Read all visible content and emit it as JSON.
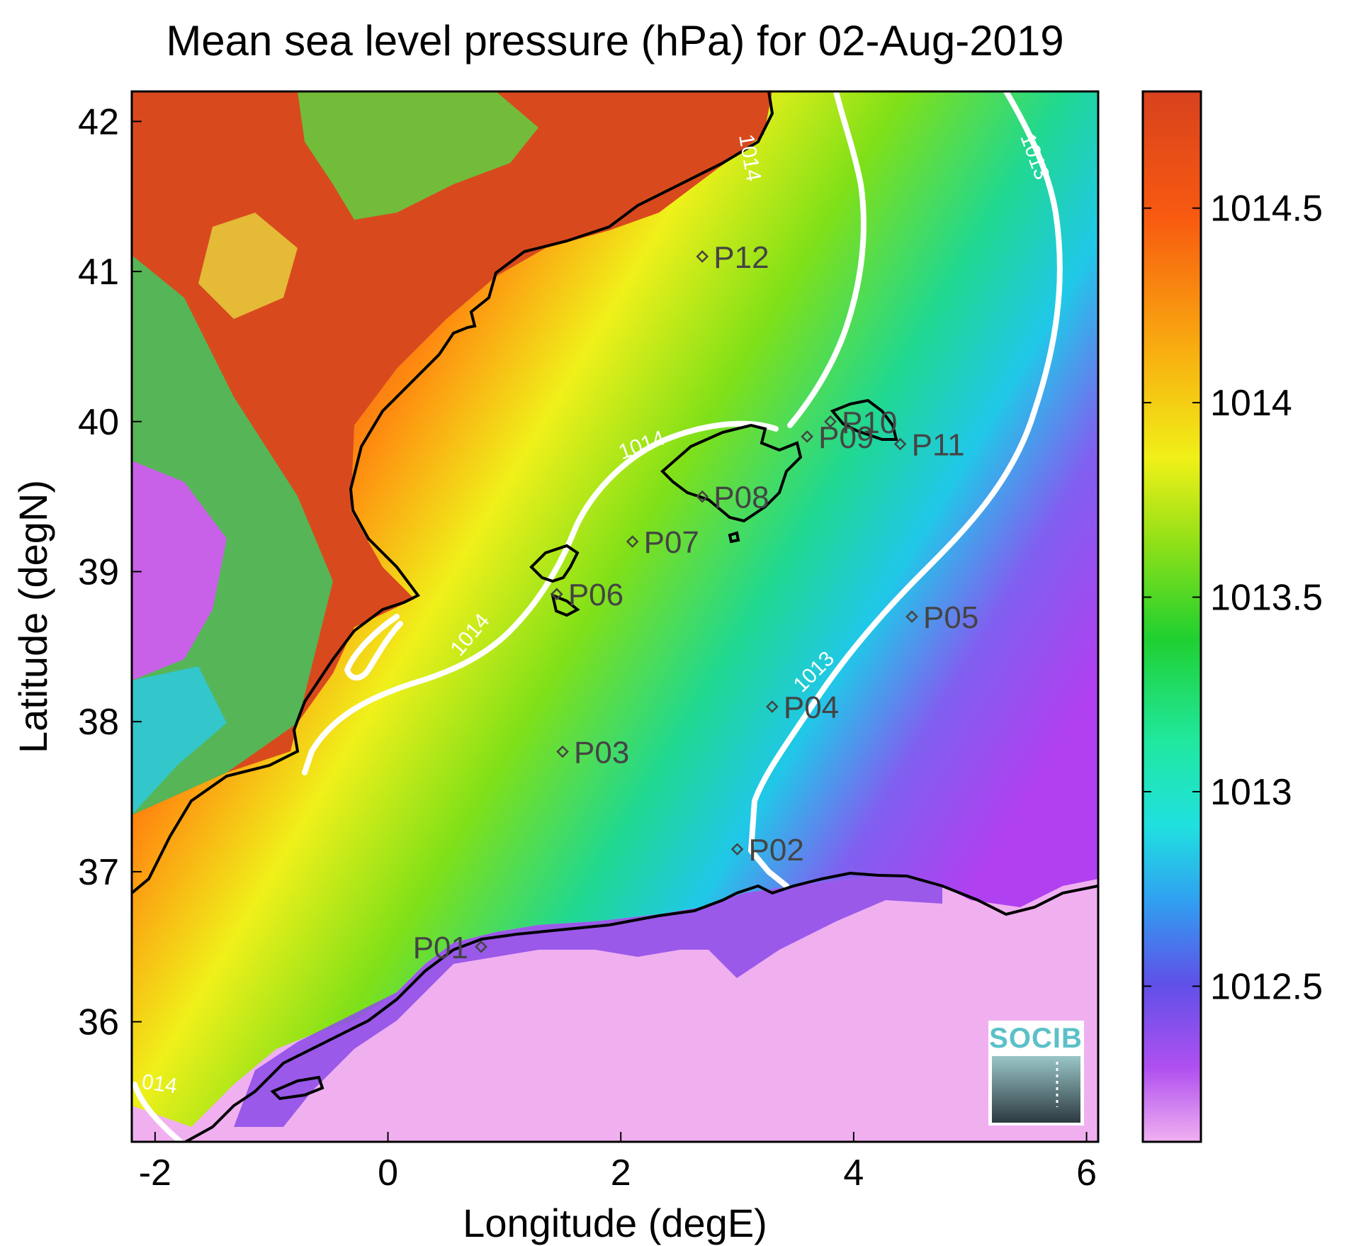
{
  "title": "Mean sea level pressure (hPa) for 02-Aug-2019",
  "xlabel": "Longitude (degE)",
  "ylabel": "Latitude (degN)",
  "x_ticks": [
    "-2",
    "0",
    "2",
    "4",
    "6"
  ],
  "y_ticks": [
    "36",
    "37",
    "38",
    "39",
    "40",
    "41",
    "42"
  ],
  "colorbar": {
    "ticks": [
      "1012.5",
      "1013",
      "1013.5",
      "1014",
      "1014.5"
    ],
    "range": [
      1012.1,
      1014.8
    ]
  },
  "logo_text": "SOCIB",
  "map": {
    "extent": {
      "lon": [
        -2.2,
        6.1
      ],
      "lat": [
        35.2,
        42.2
      ]
    },
    "stations": [
      {
        "id": "P01",
        "lon": 0.8,
        "lat": 36.5
      },
      {
        "id": "P02",
        "lon": 3.0,
        "lat": 37.15
      },
      {
        "id": "P03",
        "lon": 1.5,
        "lat": 37.8
      },
      {
        "id": "P04",
        "lon": 3.3,
        "lat": 38.1
      },
      {
        "id": "P05",
        "lon": 4.5,
        "lat": 38.7
      },
      {
        "id": "P06",
        "lon": 1.45,
        "lat": 38.85
      },
      {
        "id": "P07",
        "lon": 2.1,
        "lat": 39.2
      },
      {
        "id": "P08",
        "lon": 2.7,
        "lat": 39.5
      },
      {
        "id": "P09",
        "lon": 3.6,
        "lat": 39.9
      },
      {
        "id": "P10",
        "lon": 3.8,
        "lat": 40.0
      },
      {
        "id": "P11",
        "lon": 4.4,
        "lat": 39.85
      },
      {
        "id": "P12",
        "lon": 2.7,
        "lat": 41.1
      }
    ],
    "contour_labels": [
      {
        "text": "1014",
        "lon": 3.05,
        "lat": 41.75,
        "rotate": 80
      },
      {
        "text": "1014",
        "lon": 2.2,
        "lat": 39.8,
        "rotate": -20
      },
      {
        "text": "1014",
        "lon": 0.75,
        "lat": 38.55,
        "rotate": -50
      },
      {
        "text": "014",
        "lon": -1.97,
        "lat": 35.54,
        "rotate": 8
      },
      {
        "text": "1013",
        "lon": 5.5,
        "lat": 41.75,
        "rotate": 70
      },
      {
        "text": "1013",
        "lon": 3.7,
        "lat": 38.3,
        "rotate": -45
      }
    ]
  }
}
